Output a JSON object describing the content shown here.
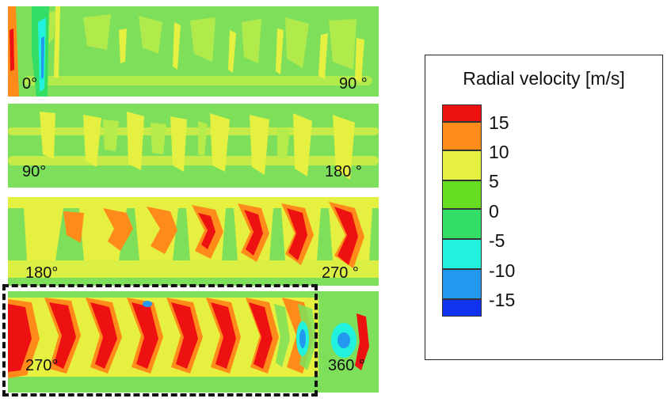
{
  "panels": [
    {
      "start_label": "0°",
      "end_label": "90 °"
    },
    {
      "start_label": "90°",
      "end_label": "180 °"
    },
    {
      "start_label": "180°",
      "end_label": "270 °"
    },
    {
      "start_label": "270°",
      "end_label": "360 °"
    }
  ],
  "legend": {
    "title": "Radial velocity [m/s]",
    "ticks": [
      "15",
      "10",
      "5",
      "0",
      "-5",
      "-10",
      "-15"
    ],
    "colors": [
      "#ee1111",
      "#ff8c1a",
      "#e6f040",
      "#66dd22",
      "#33dd66",
      "#22f2dd",
      "#2299ee",
      "#1133ee"
    ]
  },
  "palette": {
    "green": "#7ee05a",
    "yellow": "#e6f040",
    "orange": "#ff8c1a",
    "red": "#ee1111",
    "cyan": "#22f2dd",
    "blue": "#2299ee"
  }
}
